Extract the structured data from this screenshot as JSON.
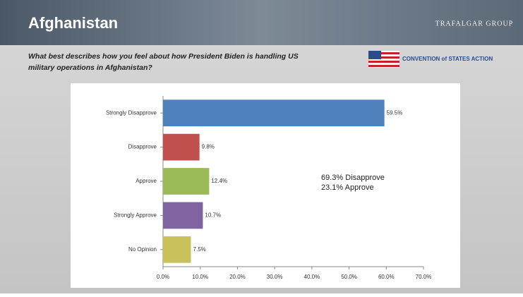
{
  "header": {
    "title": "Afghanistan",
    "logo": "TRAFALGAR GROUP",
    "sponsor": "CONVENTION of STATES ACTION"
  },
  "question": [
    "What best describes how you feel about how President Biden is handling US",
    "military operations in Afghanistan?"
  ],
  "chart_data": {
    "type": "bar",
    "orientation": "horizontal",
    "categories": [
      "Strongly Disapprove",
      "Disapprove",
      "Approve",
      "Strongly Approve",
      "No Opinion"
    ],
    "values": [
      59.5,
      9.8,
      12.4,
      10.7,
      7.5
    ],
    "value_labels": [
      "59.5%",
      "9.8%",
      "12.4%",
      "10.7%",
      "7.5%"
    ],
    "colors": [
      "#4f81bd",
      "#c0504d",
      "#9bbb59",
      "#8064a2",
      "#c9c25a"
    ],
    "xlim": [
      0,
      70
    ],
    "xticks": [
      {
        "value": 0,
        "label": "0.0%"
      },
      {
        "value": 10,
        "label": "10.0%"
      },
      {
        "value": 20,
        "label": "20.0%"
      },
      {
        "value": 30,
        "label": "30.0%"
      },
      {
        "value": 40,
        "label": "40.0%"
      },
      {
        "value": 50,
        "label": "50.0%"
      },
      {
        "value": 60,
        "label": "60.0%"
      },
      {
        "value": 70,
        "label": "70.0%"
      }
    ],
    "annotations": [
      "69.3% Disapprove",
      "23.1% Approve"
    ]
  }
}
